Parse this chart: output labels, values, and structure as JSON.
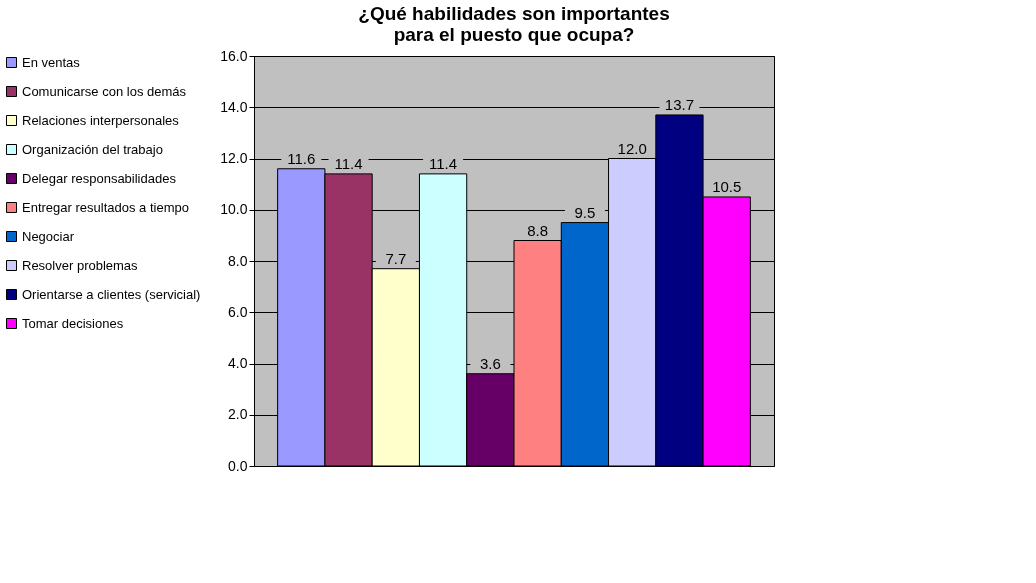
{
  "chart_data": {
    "type": "bar",
    "title": "¿Qué habilidades son importantes para el puesto que ocupa?",
    "categories": [
      null
    ],
    "series": [
      {
        "name": "En ventas",
        "color": "#9999ff",
        "values": [
          11.6
        ],
        "value_labels": [
          "11.6"
        ]
      },
      {
        "name": "Comunicarse con los demás",
        "color": "#993366",
        "values": [
          11.4
        ],
        "value_labels": [
          "11.4"
        ]
      },
      {
        "name": "Relaciones interpersonales",
        "color": "#ffffcc",
        "values": [
          7.7
        ],
        "value_labels": [
          "7.7"
        ]
      },
      {
        "name": "Organización del trabajo",
        "color": "#ccffff",
        "values": [
          11.4
        ],
        "value_labels": [
          "11.4"
        ]
      },
      {
        "name": "Delegar responsabilidades",
        "color": "#660066",
        "values": [
          3.6
        ],
        "value_labels": [
          "3.6"
        ]
      },
      {
        "name": "Entregar resultados a tiempo",
        "color": "#ff8080",
        "values": [
          8.8
        ],
        "value_labels": [
          "8.8"
        ]
      },
      {
        "name": "Negociar",
        "color": "#0066cc",
        "values": [
          9.5
        ],
        "value_labels": [
          "9.5"
        ]
      },
      {
        "name": "Resolver problemas",
        "color": "#ccccff",
        "values": [
          12.0
        ],
        "value_labels": [
          "12.0"
        ]
      },
      {
        "name": "Orientarse a clientes (servicial)",
        "color": "#000080",
        "values": [
          13.7
        ],
        "value_labels": [
          "13.7"
        ]
      },
      {
        "name": "Tomar decisiones",
        "color": "#ff00ff",
        "values": [
          10.5
        ],
        "value_labels": [
          "10.5"
        ]
      }
    ],
    "ylim": [
      0,
      16
    ],
    "yticks": [
      {
        "value": 0,
        "label": "0.0"
      },
      {
        "value": 2,
        "label": "2.0"
      },
      {
        "value": 4,
        "label": "4.0"
      },
      {
        "value": 6,
        "label": "6.0"
      },
      {
        "value": 8,
        "label": "8.0"
      },
      {
        "value": 10,
        "label": "10.0"
      },
      {
        "value": 12,
        "label": "12.0"
      },
      {
        "value": 14,
        "label": "14.0"
      },
      {
        "value": 16,
        "label": "16.0"
      }
    ],
    "grid": "y",
    "legend": "left",
    "tick_labels": "y"
  }
}
